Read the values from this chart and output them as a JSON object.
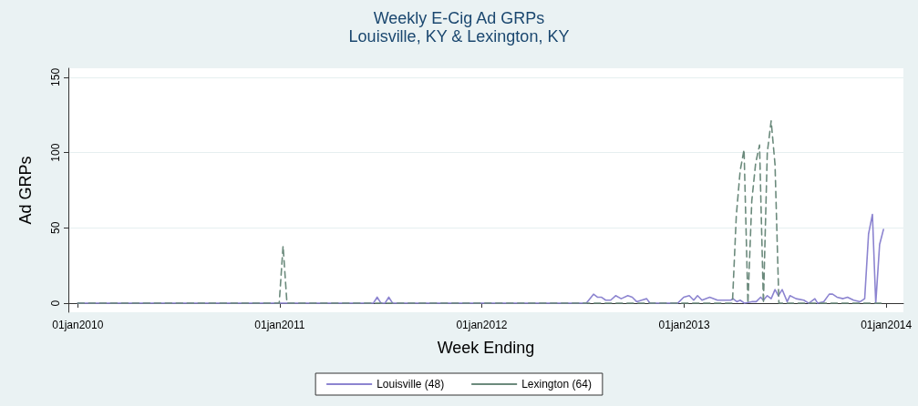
{
  "chart_data": {
    "type": "line",
    "title": "Weekly E-Cig Ad GRPs",
    "subtitle": "Louisville, KY & Lexington, KY",
    "xlabel": "Week Ending",
    "ylabel": "Ad GRPs",
    "xlim": [
      "2009-12-15",
      "2014-02-01"
    ],
    "xticks": [
      {
        "value": "2010-01-01",
        "label": "01jan2010"
      },
      {
        "value": "2011-01-01",
        "label": "01jan2011"
      },
      {
        "value": "2012-01-01",
        "label": "01jan2012"
      },
      {
        "value": "2013-01-01",
        "label": "01jan2013"
      },
      {
        "value": "2014-01-01",
        "label": "01jan2014"
      }
    ],
    "ylim": [
      -6,
      156
    ],
    "yticks": [
      0,
      50,
      100,
      150
    ],
    "grid": "y",
    "legend": "bottom",
    "marker": "none",
    "series": [
      {
        "name": "Louisville (48)",
        "color": "#8c84d0",
        "line_style": "solid",
        "x": [
          "2010-01-01",
          "2011-06-19",
          "2011-06-26",
          "2011-07-03",
          "2011-07-10",
          "2011-07-17",
          "2011-07-24",
          "2012-07-08",
          "2012-07-21",
          "2012-07-28",
          "2012-08-04",
          "2012-08-12",
          "2012-08-21",
          "2012-08-30",
          "2012-09-09",
          "2012-09-21",
          "2012-09-29",
          "2012-10-07",
          "2012-10-16",
          "2012-10-25",
          "2012-10-31",
          "2012-12-20",
          "2012-12-31",
          "2013-01-10",
          "2013-01-18",
          "2013-01-25",
          "2013-02-02",
          "2013-02-16",
          "2013-03-02",
          "2013-03-15",
          "2013-03-26",
          "2013-03-30",
          "2013-04-06",
          "2013-04-12",
          "2013-04-20",
          "2013-05-03",
          "2013-05-11",
          "2013-05-19",
          "2013-05-24",
          "2013-05-31",
          "2013-06-07",
          "2013-06-14",
          "2013-06-20",
          "2013-06-27",
          "2013-07-06",
          "2013-07-11",
          "2013-07-22",
          "2013-08-05",
          "2013-08-14",
          "2013-08-25",
          "2013-08-30",
          "2013-09-10",
          "2013-09-20",
          "2013-09-26",
          "2013-10-04",
          "2013-10-15",
          "2013-10-23",
          "2013-11-03",
          "2013-11-15",
          "2013-11-23",
          "2013-11-30",
          "2013-12-07",
          "2013-12-13",
          "2013-12-20",
          "2013-12-27"
        ],
        "values": [
          0,
          0,
          4,
          0,
          0,
          4,
          0,
          0,
          6,
          4,
          4,
          2,
          2,
          5,
          3,
          5,
          4,
          1,
          2,
          3,
          0,
          0,
          4,
          5,
          2,
          5,
          2,
          4,
          2,
          2,
          2,
          3,
          1,
          2,
          0,
          1,
          1,
          4,
          2,
          5,
          3,
          9,
          5,
          9,
          1,
          5,
          3,
          2,
          0,
          3,
          0,
          1,
          6,
          6,
          4,
          3,
          4,
          2,
          1,
          3,
          46,
          59,
          0,
          39,
          49
        ]
      },
      {
        "name": "Lexington (64)",
        "color": "#6b8a7c",
        "line_style": "dashed",
        "x": [
          "2010-01-01",
          "2010-12-31",
          "2011-01-07",
          "2011-01-14",
          "2013-03-29",
          "2013-04-05",
          "2013-04-12",
          "2013-04-19",
          "2013-04-26",
          "2013-05-03",
          "2013-05-10",
          "2013-05-17",
          "2013-05-24",
          "2013-05-31",
          "2013-06-07",
          "2013-06-14",
          "2013-06-21",
          "2013-12-25"
        ],
        "values": [
          0,
          0,
          38,
          0,
          0,
          58,
          88,
          102,
          0,
          68,
          93,
          105,
          0,
          100,
          121,
          92,
          0,
          0
        ]
      }
    ]
  }
}
